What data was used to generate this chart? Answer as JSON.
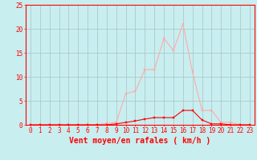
{
  "x_labels": [
    "0",
    "1",
    "2",
    "3",
    "4",
    "5",
    "6",
    "7",
    "8",
    "9",
    "10",
    "11",
    "12",
    "13",
    "14",
    "15",
    "16",
    "17",
    "18",
    "19",
    "20",
    "21",
    "22",
    "23"
  ],
  "x_values": [
    0,
    1,
    2,
    3,
    4,
    5,
    6,
    7,
    8,
    9,
    10,
    11,
    12,
    13,
    14,
    15,
    16,
    17,
    18,
    19,
    20,
    21,
    22,
    23
  ],
  "rafales_values": [
    0.0,
    0.0,
    0.0,
    0.0,
    0.0,
    0.0,
    0.0,
    0.0,
    0.3,
    0.5,
    6.5,
    7.0,
    11.5,
    11.5,
    18.0,
    15.5,
    21.0,
    11.0,
    3.0,
    3.0,
    0.5,
    0.5,
    0.0,
    0.0
  ],
  "moyen_values": [
    0.0,
    0.0,
    0.0,
    0.0,
    0.0,
    0.0,
    0.0,
    0.0,
    0.0,
    0.2,
    0.5,
    0.8,
    1.2,
    1.5,
    1.5,
    1.5,
    3.0,
    3.0,
    1.0,
    0.2,
    0.2,
    0.0,
    0.0,
    0.0
  ],
  "rafales_color": "#ffaaaa",
  "moyen_color": "#ff0000",
  "background_color": "#c8eef0",
  "grid_color": "#b0c8ca",
  "xlabel": "Vent moyen/en rafales ( km/h )",
  "ylim": [
    0,
    25
  ],
  "yticks": [
    0,
    5,
    10,
    15,
    20,
    25
  ],
  "markersize": 2,
  "linewidth": 0.8,
  "tick_fontsize": 5.5,
  "xlabel_fontsize": 7,
  "ylabel_fontsize": 6
}
